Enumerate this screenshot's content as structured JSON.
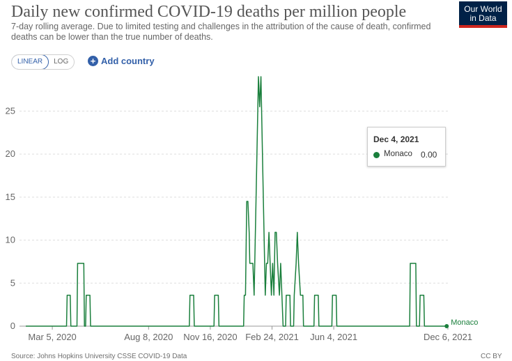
{
  "header": {
    "title": "Daily new confirmed COVID-19 deaths per million people",
    "subtitle": "7-day rolling average. Due to limited testing and challenges in the attribution of the cause of death, confirmed deaths can be lower than the true number of deaths."
  },
  "logo": {
    "line1": "Our World",
    "line2": "in Data"
  },
  "controls": {
    "linear_label": "LINEAR",
    "log_label": "LOG",
    "add_country_label": "Add country"
  },
  "tooltip": {
    "date": "Dec 4, 2021",
    "series": "Monaco",
    "value": "0.00"
  },
  "footer": {
    "source": "Source: Johns Hopkins University CSSE COVID-19 Data",
    "license": "CC BY"
  },
  "colors": {
    "series": "#1a7f3c",
    "accent": "#3360a9",
    "logo_bg": "#002147",
    "logo_stripe": "#ce261e"
  },
  "chart_data": {
    "type": "line",
    "title": "Daily new confirmed COVID-19 deaths per million people",
    "xlabel": "",
    "ylabel": "",
    "ylim": [
      0,
      29
    ],
    "yticks": [
      0,
      5,
      10,
      15,
      20,
      25
    ],
    "xlim": [
      "2020-01-22",
      "2021-12-06"
    ],
    "xtick_dates": [
      "2020-03-05",
      "2020-08-08",
      "2020-11-16",
      "2021-02-24",
      "2021-06-04",
      "2021-12-06"
    ],
    "xtick_labels": [
      "Mar 5, 2020",
      "Aug 8, 2020",
      "Nov 16, 2020",
      "Feb 24, 2021",
      "Jun 4, 2021",
      "Dec 6, 2021"
    ],
    "grid": "horizontal",
    "series": [
      {
        "name": "Monaco",
        "end_label": "Monaco",
        "points": [
          [
            "2020-01-22",
            0
          ],
          [
            "2020-03-28",
            0
          ],
          [
            "2020-03-29",
            3.6
          ],
          [
            "2020-04-03",
            3.6
          ],
          [
            "2020-04-04",
            0
          ],
          [
            "2020-04-14",
            0
          ],
          [
            "2020-04-15",
            7.3
          ],
          [
            "2020-04-25",
            7.3
          ],
          [
            "2020-04-26",
            0
          ],
          [
            "2020-04-28",
            0
          ],
          [
            "2020-04-29",
            3.6
          ],
          [
            "2020-05-05",
            3.6
          ],
          [
            "2020-05-06",
            0
          ],
          [
            "2020-10-13",
            0
          ],
          [
            "2020-10-14",
            3.6
          ],
          [
            "2020-10-20",
            3.6
          ],
          [
            "2020-10-21",
            0
          ],
          [
            "2020-11-22",
            0
          ],
          [
            "2020-11-23",
            3.6
          ],
          [
            "2020-11-29",
            3.6
          ],
          [
            "2020-11-30",
            0
          ],
          [
            "2021-01-09",
            0
          ],
          [
            "2021-01-10",
            3.6
          ],
          [
            "2021-01-12",
            3.6
          ],
          [
            "2021-01-14",
            14.5
          ],
          [
            "2021-01-16",
            14.5
          ],
          [
            "2021-01-18",
            10.9
          ],
          [
            "2021-01-19",
            7.3
          ],
          [
            "2021-01-24",
            7.3
          ],
          [
            "2021-01-26",
            3.6
          ],
          [
            "2021-01-29",
            14.5
          ],
          [
            "2021-01-30",
            18.2
          ],
          [
            "2021-02-02",
            29
          ],
          [
            "2021-02-04",
            25.5
          ],
          [
            "2021-02-06",
            29
          ],
          [
            "2021-02-09",
            18.2
          ],
          [
            "2021-02-11",
            10.9
          ],
          [
            "2021-02-13",
            3.6
          ],
          [
            "2021-02-15",
            7.3
          ],
          [
            "2021-02-17",
            7.3
          ],
          [
            "2021-02-19",
            10.9
          ],
          [
            "2021-02-21",
            7.3
          ],
          [
            "2021-02-23",
            3.6
          ],
          [
            "2021-02-25",
            7.3
          ],
          [
            "2021-02-27",
            3.6
          ],
          [
            "2021-03-01",
            10.9
          ],
          [
            "2021-03-03",
            10.9
          ],
          [
            "2021-03-05",
            7.3
          ],
          [
            "2021-03-08",
            3.6
          ],
          [
            "2021-03-10",
            7.3
          ],
          [
            "2021-03-12",
            3.6
          ],
          [
            "2021-03-14",
            0
          ],
          [
            "2021-03-18",
            0
          ],
          [
            "2021-03-19",
            3.6
          ],
          [
            "2021-03-25",
            3.6
          ],
          [
            "2021-03-26",
            0
          ],
          [
            "2021-03-31",
            0
          ],
          [
            "2021-04-01",
            3.6
          ],
          [
            "2021-04-04",
            7.3
          ],
          [
            "2021-04-06",
            10.9
          ],
          [
            "2021-04-08",
            7.3
          ],
          [
            "2021-04-11",
            3.6
          ],
          [
            "2021-04-15",
            3.6
          ],
          [
            "2021-04-16",
            0
          ],
          [
            "2021-05-03",
            0
          ],
          [
            "2021-05-04",
            3.6
          ],
          [
            "2021-05-10",
            3.6
          ],
          [
            "2021-05-11",
            0
          ],
          [
            "2021-06-01",
            0
          ],
          [
            "2021-06-02",
            3.6
          ],
          [
            "2021-06-08",
            3.6
          ],
          [
            "2021-06-09",
            0
          ],
          [
            "2021-10-05",
            0
          ],
          [
            "2021-10-06",
            7.3
          ],
          [
            "2021-10-15",
            7.3
          ],
          [
            "2021-10-16",
            0
          ],
          [
            "2021-10-21",
            0
          ],
          [
            "2021-10-22",
            3.6
          ],
          [
            "2021-10-28",
            3.6
          ],
          [
            "2021-10-29",
            0
          ],
          [
            "2021-12-04",
            0
          ]
        ]
      }
    ]
  }
}
